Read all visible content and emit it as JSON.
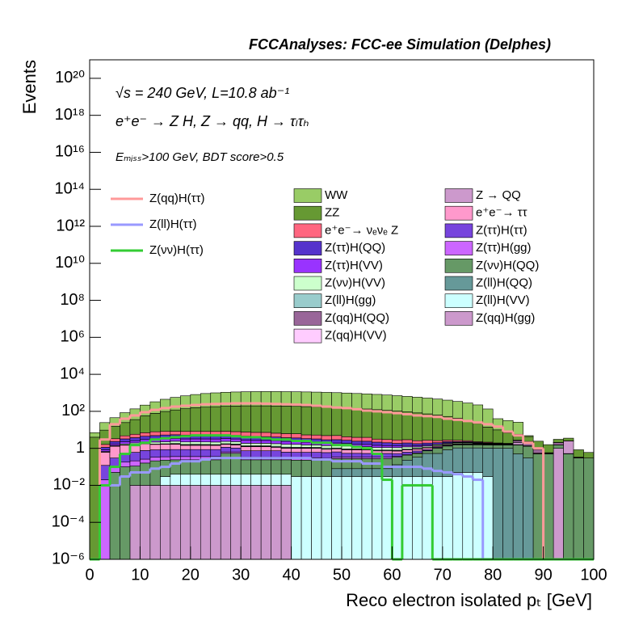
{
  "chart_data": {
    "type": "stacked_histogram",
    "title": "FCCAnalyses: FCC-ee Simulation (Delphes)",
    "annotations": [
      "√s = 240 GeV, L=10.8 ab⁻¹",
      "e⁺e⁻ → Z H, Z → qq, H → τₗτₕ",
      "Eₘᵢₛₛ>100 GeV, BDT score>0.5"
    ],
    "x_label": "Reco electron isolated pₜ [GeV]",
    "y_label": "Events",
    "ylog": true,
    "xlim": [
      0,
      100
    ],
    "xticks": [
      0,
      10,
      20,
      30,
      40,
      50,
      60,
      70,
      80,
      90,
      100
    ],
    "ylim": [
      1e-06,
      1e+21
    ],
    "yticks": [
      {
        "value": 1e-06,
        "label": "10⁻⁶"
      },
      {
        "value": 0.0001,
        "label": "10⁻⁴"
      },
      {
        "value": 0.01,
        "label": "10⁻²"
      },
      1,
      {
        "value": 100,
        "label": "10²"
      },
      {
        "value": 10000,
        "label": "10⁴"
      },
      {
        "value": 1000000.0,
        "label": "10⁶"
      },
      {
        "value": 100000000.0,
        "label": "10⁸"
      },
      {
        "value": 10000000000.0,
        "label": "10¹⁰"
      },
      {
        "value": 1000000000000.0,
        "label": "10¹²"
      },
      {
        "value": 100000000000000.0,
        "label": "10¹⁴"
      },
      {
        "value": 1e+16,
        "label": "10¹⁶"
      },
      {
        "value": 1e+18,
        "label": "10¹⁸"
      },
      {
        "value": 1e+20,
        "label": "10²⁰"
      }
    ],
    "bins": [
      0,
      2,
      4,
      6,
      8,
      10,
      12,
      14,
      16,
      18,
      20,
      22,
      24,
      26,
      28,
      30,
      32,
      34,
      36,
      38,
      40,
      42,
      44,
      46,
      48,
      50,
      52,
      54,
      56,
      58,
      60,
      62,
      64,
      66,
      68,
      70,
      72,
      74,
      76,
      78,
      80,
      82,
      84,
      86,
      88,
      90,
      92,
      94,
      96,
      98,
      100
    ],
    "series": [
      {
        "name": "WW",
        "color": "#99cc66",
        "values": [
          3,
          15,
          30,
          60,
          100,
          160,
          250,
          350,
          450,
          550,
          650,
          750,
          820,
          880,
          920,
          950,
          970,
          980,
          980,
          970,
          960,
          940,
          920,
          890,
          860,
          820,
          780,
          740,
          700,
          650,
          600,
          550,
          500,
          450,
          400,
          350,
          300,
          250,
          200,
          120,
          30,
          25,
          20,
          0.5,
          0,
          0,
          0,
          0,
          0,
          0
        ]
      },
      {
        "name": "ZZ",
        "color": "#669933",
        "values": [
          4,
          8,
          12,
          20,
          30,
          50,
          70,
          90,
          110,
          130,
          150,
          160,
          170,
          180,
          185,
          190,
          190,
          190,
          188,
          185,
          180,
          175,
          170,
          165,
          160,
          150,
          140,
          130,
          120,
          110,
          100,
          90,
          80,
          70,
          60,
          50,
          40,
          30,
          20,
          12,
          8,
          5,
          3,
          2,
          1.5,
          1,
          1,
          1,
          0.5,
          0.3
        ]
      },
      {
        "name": "e⁺e⁻→ νₑνₑ Z",
        "color": "#ff6680",
        "values": [
          0,
          0.5,
          1,
          1.5,
          2,
          2.5,
          3,
          3,
          3,
          3,
          3,
          3,
          3,
          3,
          3,
          3,
          3,
          3,
          2.5,
          2.5,
          2.5,
          2,
          2,
          2,
          2,
          1.5,
          1.5,
          1.5,
          1,
          1,
          1,
          1,
          0.8,
          0.8,
          0.6,
          0.5,
          0.4,
          0.3,
          0.2,
          0.2,
          0.1,
          0.1,
          0.05,
          0.05,
          0,
          0,
          0,
          0,
          0,
          0
        ]
      },
      {
        "name": "Z(ττ)H(QQ)",
        "color": "#5533cc",
        "values": [
          0,
          0.3,
          0.6,
          1,
          1.2,
          1.5,
          1.8,
          2,
          2,
          2,
          2,
          2,
          2,
          2,
          1.8,
          1.8,
          1.6,
          1.6,
          1.5,
          1.4,
          1.3,
          1.2,
          1.1,
          1,
          1,
          0.9,
          0.8,
          0.8,
          0.7,
          0.6,
          0.5,
          0.5,
          0.4,
          0.4,
          0.3,
          0.3,
          0.2,
          0.2,
          0.15,
          0.1,
          0.1,
          0.08,
          0.05,
          0.05,
          0.03,
          0.02,
          0.02,
          0.01,
          0.01,
          0
        ]
      },
      {
        "name": "Z(ττ)H(VV)",
        "color": "#9933ff",
        "values": [
          0,
          0.15,
          0.3,
          0.5,
          0.6,
          0.8,
          0.9,
          1,
          1,
          1,
          1,
          1,
          1,
          1,
          0.9,
          0.9,
          0.8,
          0.8,
          0.8,
          0.7,
          0.7,
          0.6,
          0.6,
          0.5,
          0.5,
          0.5,
          0.4,
          0.4,
          0.35,
          0.3,
          0.25,
          0.25,
          0.2,
          0.2,
          0.15,
          0.15,
          0.1,
          0.1,
          0.08,
          0.05,
          0.05,
          0.04,
          0.03,
          0.02,
          0.02,
          0.01,
          0.01,
          0.005,
          0.005,
          0
        ]
      },
      {
        "name": "Z(νν)H(VV)",
        "color": "#ccffcc",
        "values": [
          0,
          0.05,
          0.1,
          0.2,
          0.3,
          0.4,
          0.5,
          0.5,
          0.6,
          0.6,
          0.6,
          0.6,
          0.6,
          0.6,
          0.6,
          0.5,
          0.5,
          0.5,
          0.5,
          0.5,
          0.5,
          0.4,
          0.4,
          0.4,
          0.4,
          0.4,
          0.3,
          0.3,
          0.3,
          0.3,
          0.3,
          0.3,
          0.2,
          0.2,
          0.2,
          0.2,
          0.2,
          0.2,
          0.1,
          0.1,
          0.1,
          0.05,
          0.05,
          0.05,
          0.02,
          0.02,
          0.01,
          0.01,
          0,
          0
        ]
      },
      {
        "name": "Z(ll)H(gg)",
        "color": "#99cccc",
        "values": [
          0,
          0,
          0,
          0,
          0,
          0,
          0,
          0.08,
          0.1,
          0.12,
          0.12,
          0.12,
          0.1,
          0.1,
          0.12,
          0.1,
          0.1,
          0.1,
          0.12,
          0.1,
          0.1,
          0.1,
          0.1,
          0.1,
          0.08,
          0.08,
          0.08,
          0.08,
          0.06,
          0.06,
          0.06,
          0.06,
          0.05,
          0.05,
          0.05,
          0.05,
          0.04,
          0.04,
          0.03,
          0.02,
          0,
          0,
          0,
          0,
          0,
          0,
          0,
          0,
          0,
          0
        ]
      },
      {
        "name": "Z(qq)H(QQ)",
        "color": "#996699",
        "values": [
          0,
          0.01,
          0.02,
          0.05,
          0.05,
          0.03,
          0.05,
          0.02,
          0.05,
          0.03,
          0.05,
          0.03,
          0.02,
          0.02,
          0.03,
          0.02,
          0.03,
          0.02,
          0.02,
          0.03,
          0.02,
          0.02,
          0.01,
          0.01,
          0.02,
          0.01,
          0.01,
          0.01,
          0.01,
          0.01,
          0.01,
          0.01,
          0.01,
          0.01,
          0.01,
          0.005,
          0.005,
          0.005,
          0.005,
          0,
          0,
          0,
          0.5,
          0.8,
          0.3,
          0,
          0.5,
          0,
          0,
          0
        ]
      },
      {
        "name": "Z(qq)H(VV)",
        "color": "#ffccff",
        "values": [
          0,
          0,
          0.005,
          0.01,
          0.01,
          0.01,
          0.01,
          0.01,
          0.01,
          0.01,
          0.01,
          0.01,
          0.01,
          0.01,
          0.01,
          0.01,
          0.01,
          0.01,
          0.01,
          0.01,
          0.01,
          0.01,
          0.005,
          0.005,
          0.005,
          0.005,
          0.005,
          0.005,
          0.005,
          0.005,
          0.005,
          0.005,
          0.005,
          0,
          0,
          0,
          0,
          0,
          0,
          0,
          0,
          0,
          0,
          0,
          0,
          0,
          0,
          0,
          0,
          0
        ]
      },
      {
        "name": "Z → QQ",
        "color": "#cc99cc",
        "values": [
          0,
          0,
          0,
          0,
          0,
          0,
          0,
          0,
          0,
          0,
          0,
          0,
          0,
          0,
          0,
          0,
          0,
          0,
          0,
          0,
          0,
          0,
          0,
          0,
          0,
          0,
          0,
          0,
          0,
          0,
          0,
          0,
          0,
          0,
          0,
          0,
          0,
          0,
          0,
          0,
          0,
          0,
          0.5,
          0,
          0,
          0,
          0,
          2,
          0,
          0
        ]
      },
      {
        "name": "e⁺e⁻→ ττ",
        "color": "#ff99cc",
        "values": [
          0,
          0.5,
          1,
          1,
          1,
          1,
          0.8,
          0.8,
          0.8,
          0.6,
          0.6,
          0.6,
          0.6,
          0.5,
          0.5,
          0.5,
          0.5,
          0.5,
          0.4,
          0.4,
          0.4,
          0.4,
          0.4,
          0.3,
          0.3,
          0.3,
          0.3,
          0.3,
          0.2,
          0.2,
          0.2,
          0.2,
          0.2,
          0.2,
          0.15,
          0.15,
          0.1,
          0.1,
          0.1,
          0.1,
          0.05,
          0.05,
          0.05,
          0.05,
          0.05,
          0.02,
          0.02,
          0.02,
          0.02,
          0
        ]
      },
      {
        "name": "Z(ττ)H(ττ)",
        "color": "#7744dd",
        "values": [
          0,
          0.1,
          0.2,
          0.3,
          0.4,
          0.5,
          0.5,
          0.5,
          0.5,
          0.5,
          0.5,
          0.5,
          0.5,
          0.5,
          0.4,
          0.4,
          0.4,
          0.4,
          0.4,
          0.3,
          0.3,
          0.3,
          0.3,
          0.3,
          0.3,
          0.2,
          0.2,
          0.2,
          0.2,
          0.2,
          0.15,
          0.15,
          0.15,
          0.1,
          0.1,
          0.1,
          0.1,
          0.08,
          0.06,
          0.05,
          0.04,
          0.03,
          0.02,
          0.02,
          0.01,
          0.01,
          0.01,
          0,
          0,
          0
        ]
      },
      {
        "name": "Z(ττ)H(gg)",
        "color": "#cc66ff",
        "values": [
          0,
          0.02,
          0.05,
          0.08,
          0.1,
          0.1,
          0.12,
          0.12,
          0.12,
          0.12,
          0.12,
          0.12,
          0.12,
          0.1,
          0.1,
          0.1,
          0.1,
          0.1,
          0.1,
          0.08,
          0.08,
          0.08,
          0.08,
          0.06,
          0.06,
          0.06,
          0.06,
          0.05,
          0.05,
          0.05,
          0.04,
          0.04,
          0.04,
          0.03,
          0.03,
          0.02,
          0.02,
          0.02,
          0.01,
          0.01,
          0.01,
          0.01,
          0.005,
          0.005,
          0,
          0,
          0,
          0,
          0,
          0
        ]
      },
      {
        "name": "Z(νν)H(QQ)",
        "color": "#669966",
        "values": [
          0,
          0,
          0.05,
          0.1,
          0.1,
          0.15,
          0.2,
          0.2,
          0.2,
          0.2,
          0.2,
          0.2,
          0.2,
          0.5,
          0.5,
          0.2,
          0.2,
          0.2,
          0.2,
          0.2,
          0.2,
          0.2,
          0.2,
          0.2,
          0.2,
          0.2,
          0.2,
          0.2,
          0.2,
          0.2,
          0.2,
          0.2,
          0.2,
          0.2,
          0.5,
          0.5,
          0.5,
          0.5,
          0.5,
          0.5,
          0.5,
          0.5,
          1,
          1,
          0.5,
          0.5,
          0.5,
          0.5,
          0.3,
          0.3
        ]
      },
      {
        "name": "Z(ll)H(QQ)",
        "color": "#669999",
        "values": [
          0,
          0,
          0,
          0,
          0,
          0,
          0,
          0,
          0,
          0,
          0,
          0,
          0,
          0,
          0,
          0,
          0,
          0,
          0,
          0,
          0,
          0,
          0,
          0,
          0.05,
          0.05,
          0.05,
          0.05,
          0.05,
          0.05,
          0.1,
          0.2,
          0.3,
          0.5,
          0.5,
          0.8,
          1,
          1,
          1,
          1,
          1,
          1,
          0.5,
          0.3,
          0,
          0,
          0,
          0,
          0,
          0
        ]
      },
      {
        "name": "Z(ll)H(VV)",
        "color": "#ccffff",
        "values": [
          0,
          0,
          0,
          0,
          0,
          0,
          0,
          0.02,
          0.03,
          0.03,
          0.03,
          0.03,
          0.03,
          0.03,
          0.03,
          0.03,
          0.03,
          0.03,
          0.03,
          0.03,
          0.03,
          0.03,
          0.03,
          0.03,
          0.03,
          0.03,
          0.03,
          0.03,
          0.03,
          0.03,
          0.03,
          0.03,
          0.03,
          0.03,
          0.03,
          0.03,
          0.05,
          0.05,
          0.05,
          0.03,
          0,
          0,
          0,
          0,
          0,
          0,
          0,
          0,
          0,
          0
        ]
      },
      {
        "name": "Z(qq)H(gg)",
        "color": "#cc99cc",
        "values": [
          0,
          0,
          0,
          0,
          0.01,
          0.01,
          0.01,
          0.01,
          0.01,
          0.01,
          0.01,
          0.01,
          0.01,
          0.01,
          0.01,
          0.01,
          0.01,
          0.01,
          0.01,
          0.01,
          0,
          0,
          0,
          0,
          0,
          0,
          0,
          0,
          0,
          0,
          0,
          0,
          0,
          0,
          0,
          0,
          0,
          0,
          0,
          0,
          0,
          0,
          0,
          0,
          0,
          0,
          1,
          0,
          0,
          0
        ]
      },
      {
        "name": "Z(qq)H(ττ)",
        "color": "#ff9999",
        "histtype": "step",
        "values": [
          0,
          3,
          20,
          40,
          60,
          90,
          120,
          150,
          180,
          200,
          220,
          240,
          250,
          260,
          270,
          270,
          270,
          260,
          250,
          240,
          230,
          220,
          200,
          180,
          160,
          150,
          130,
          110,
          100,
          90,
          80,
          70,
          60,
          55,
          50,
          40,
          35,
          30,
          25,
          20,
          15,
          8,
          5,
          2,
          1,
          0,
          0,
          0,
          0,
          0
        ]
      },
      {
        "name": "Z(ll)H(ττ)",
        "color": "#9999ff",
        "histtype": "step",
        "values": [
          0,
          0.01,
          0.01,
          0.03,
          0.05,
          0.05,
          0.08,
          0.1,
          0.15,
          0.2,
          0.2,
          0.25,
          0.3,
          0.3,
          0.3,
          0.3,
          0.3,
          0.3,
          0.3,
          0.3,
          0.3,
          0.3,
          0.25,
          0.25,
          0.2,
          0.2,
          0.2,
          0.15,
          0.15,
          0.1,
          0.1,
          0.1,
          0.1,
          0.08,
          0.06,
          0.05,
          0.04,
          0.03,
          0.02,
          0,
          0,
          0,
          0,
          0,
          0,
          0,
          0,
          0,
          0,
          0
        ]
      },
      {
        "name": "Z(νν)H(ττ)",
        "color": "#33cc33",
        "histtype": "step",
        "values": [
          0,
          0.01,
          0.1,
          0.5,
          1.5,
          2,
          3,
          3.5,
          4,
          4.5,
          5,
          5,
          5,
          5,
          4.5,
          4,
          4,
          3.5,
          3,
          3,
          2.5,
          2.5,
          2,
          2,
          1.5,
          1.5,
          1.2,
          1,
          0.5,
          0.02,
          0,
          0.01,
          0.01,
          0.01,
          0,
          0,
          0,
          0,
          0,
          0,
          0,
          0,
          0,
          0,
          0,
          0,
          0,
          0,
          0,
          0
        ]
      }
    ]
  }
}
